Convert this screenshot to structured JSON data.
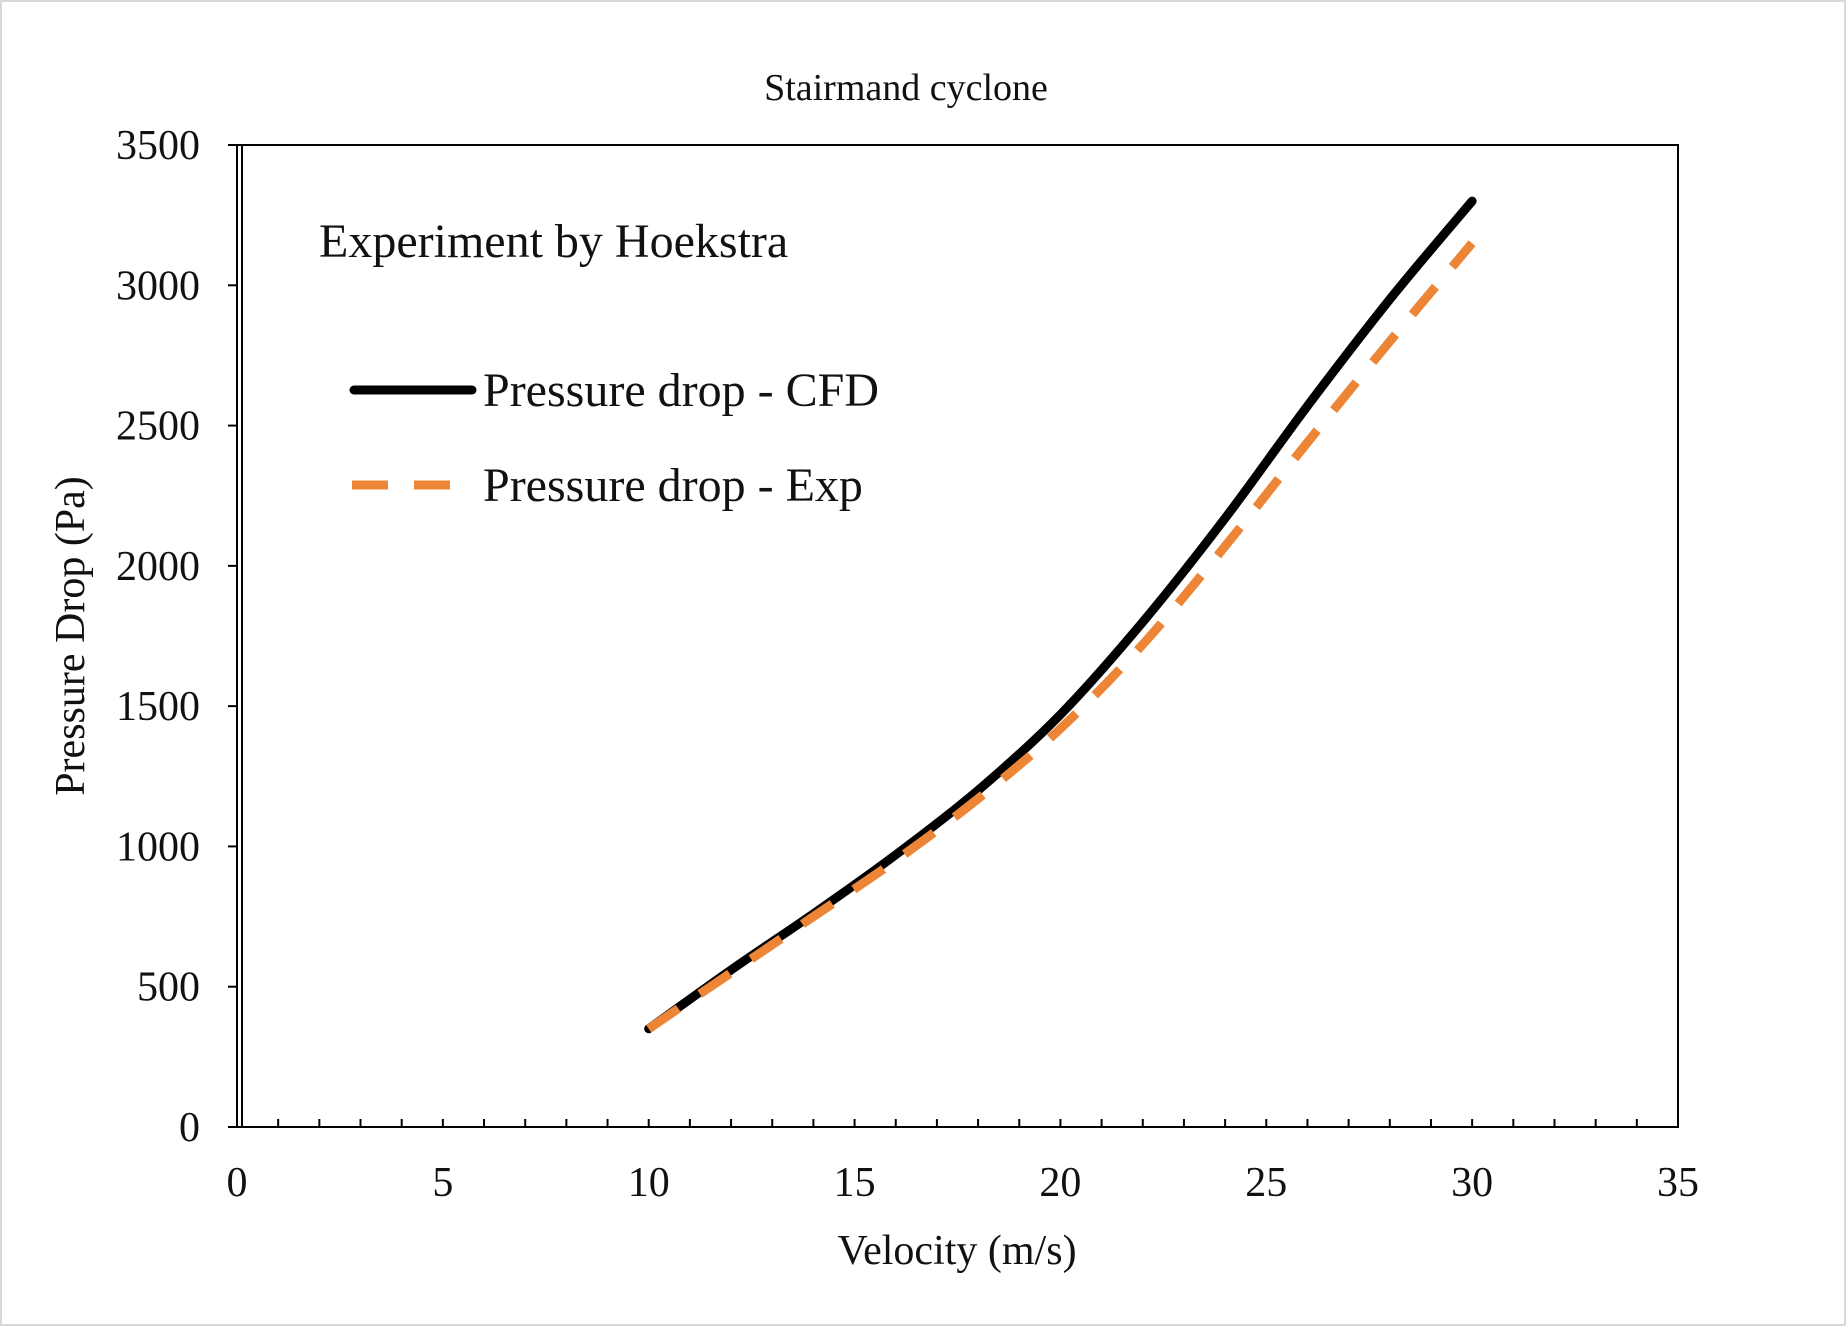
{
  "chart_data": {
    "type": "line",
    "title": "Stairmand cyclone",
    "annotation": "Experiment by Hoekstra",
    "xlabel": "Velocity (m/s)",
    "ylabel": "Pressure Drop (Pa)",
    "xlim": [
      0,
      35
    ],
    "ylim": [
      0,
      3500
    ],
    "xticks": [
      0,
      5,
      10,
      15,
      20,
      25,
      30,
      35
    ],
    "yticks": [
      0,
      500,
      1000,
      1500,
      2000,
      2500,
      3000,
      3500
    ],
    "grid": false,
    "legend_position": "top-left",
    "series": [
      {
        "name": "Pressure drop - CFD",
        "color": "#000000",
        "style": "solid",
        "x": [
          10,
          12,
          14,
          16,
          18,
          20,
          22,
          24,
          26,
          28,
          30
        ],
        "y": [
          350,
          560,
          760,
          970,
          1200,
          1470,
          1800,
          2170,
          2570,
          2950,
          3300
        ]
      },
      {
        "name": "Pressure drop - Exp",
        "color": "#ed8536",
        "style": "dashed",
        "x": [
          10,
          12,
          14,
          16,
          18,
          20,
          22,
          24,
          26,
          28,
          30
        ],
        "y": [
          350,
          550,
          750,
          950,
          1170,
          1420,
          1720,
          2070,
          2440,
          2800,
          3150
        ]
      }
    ]
  }
}
